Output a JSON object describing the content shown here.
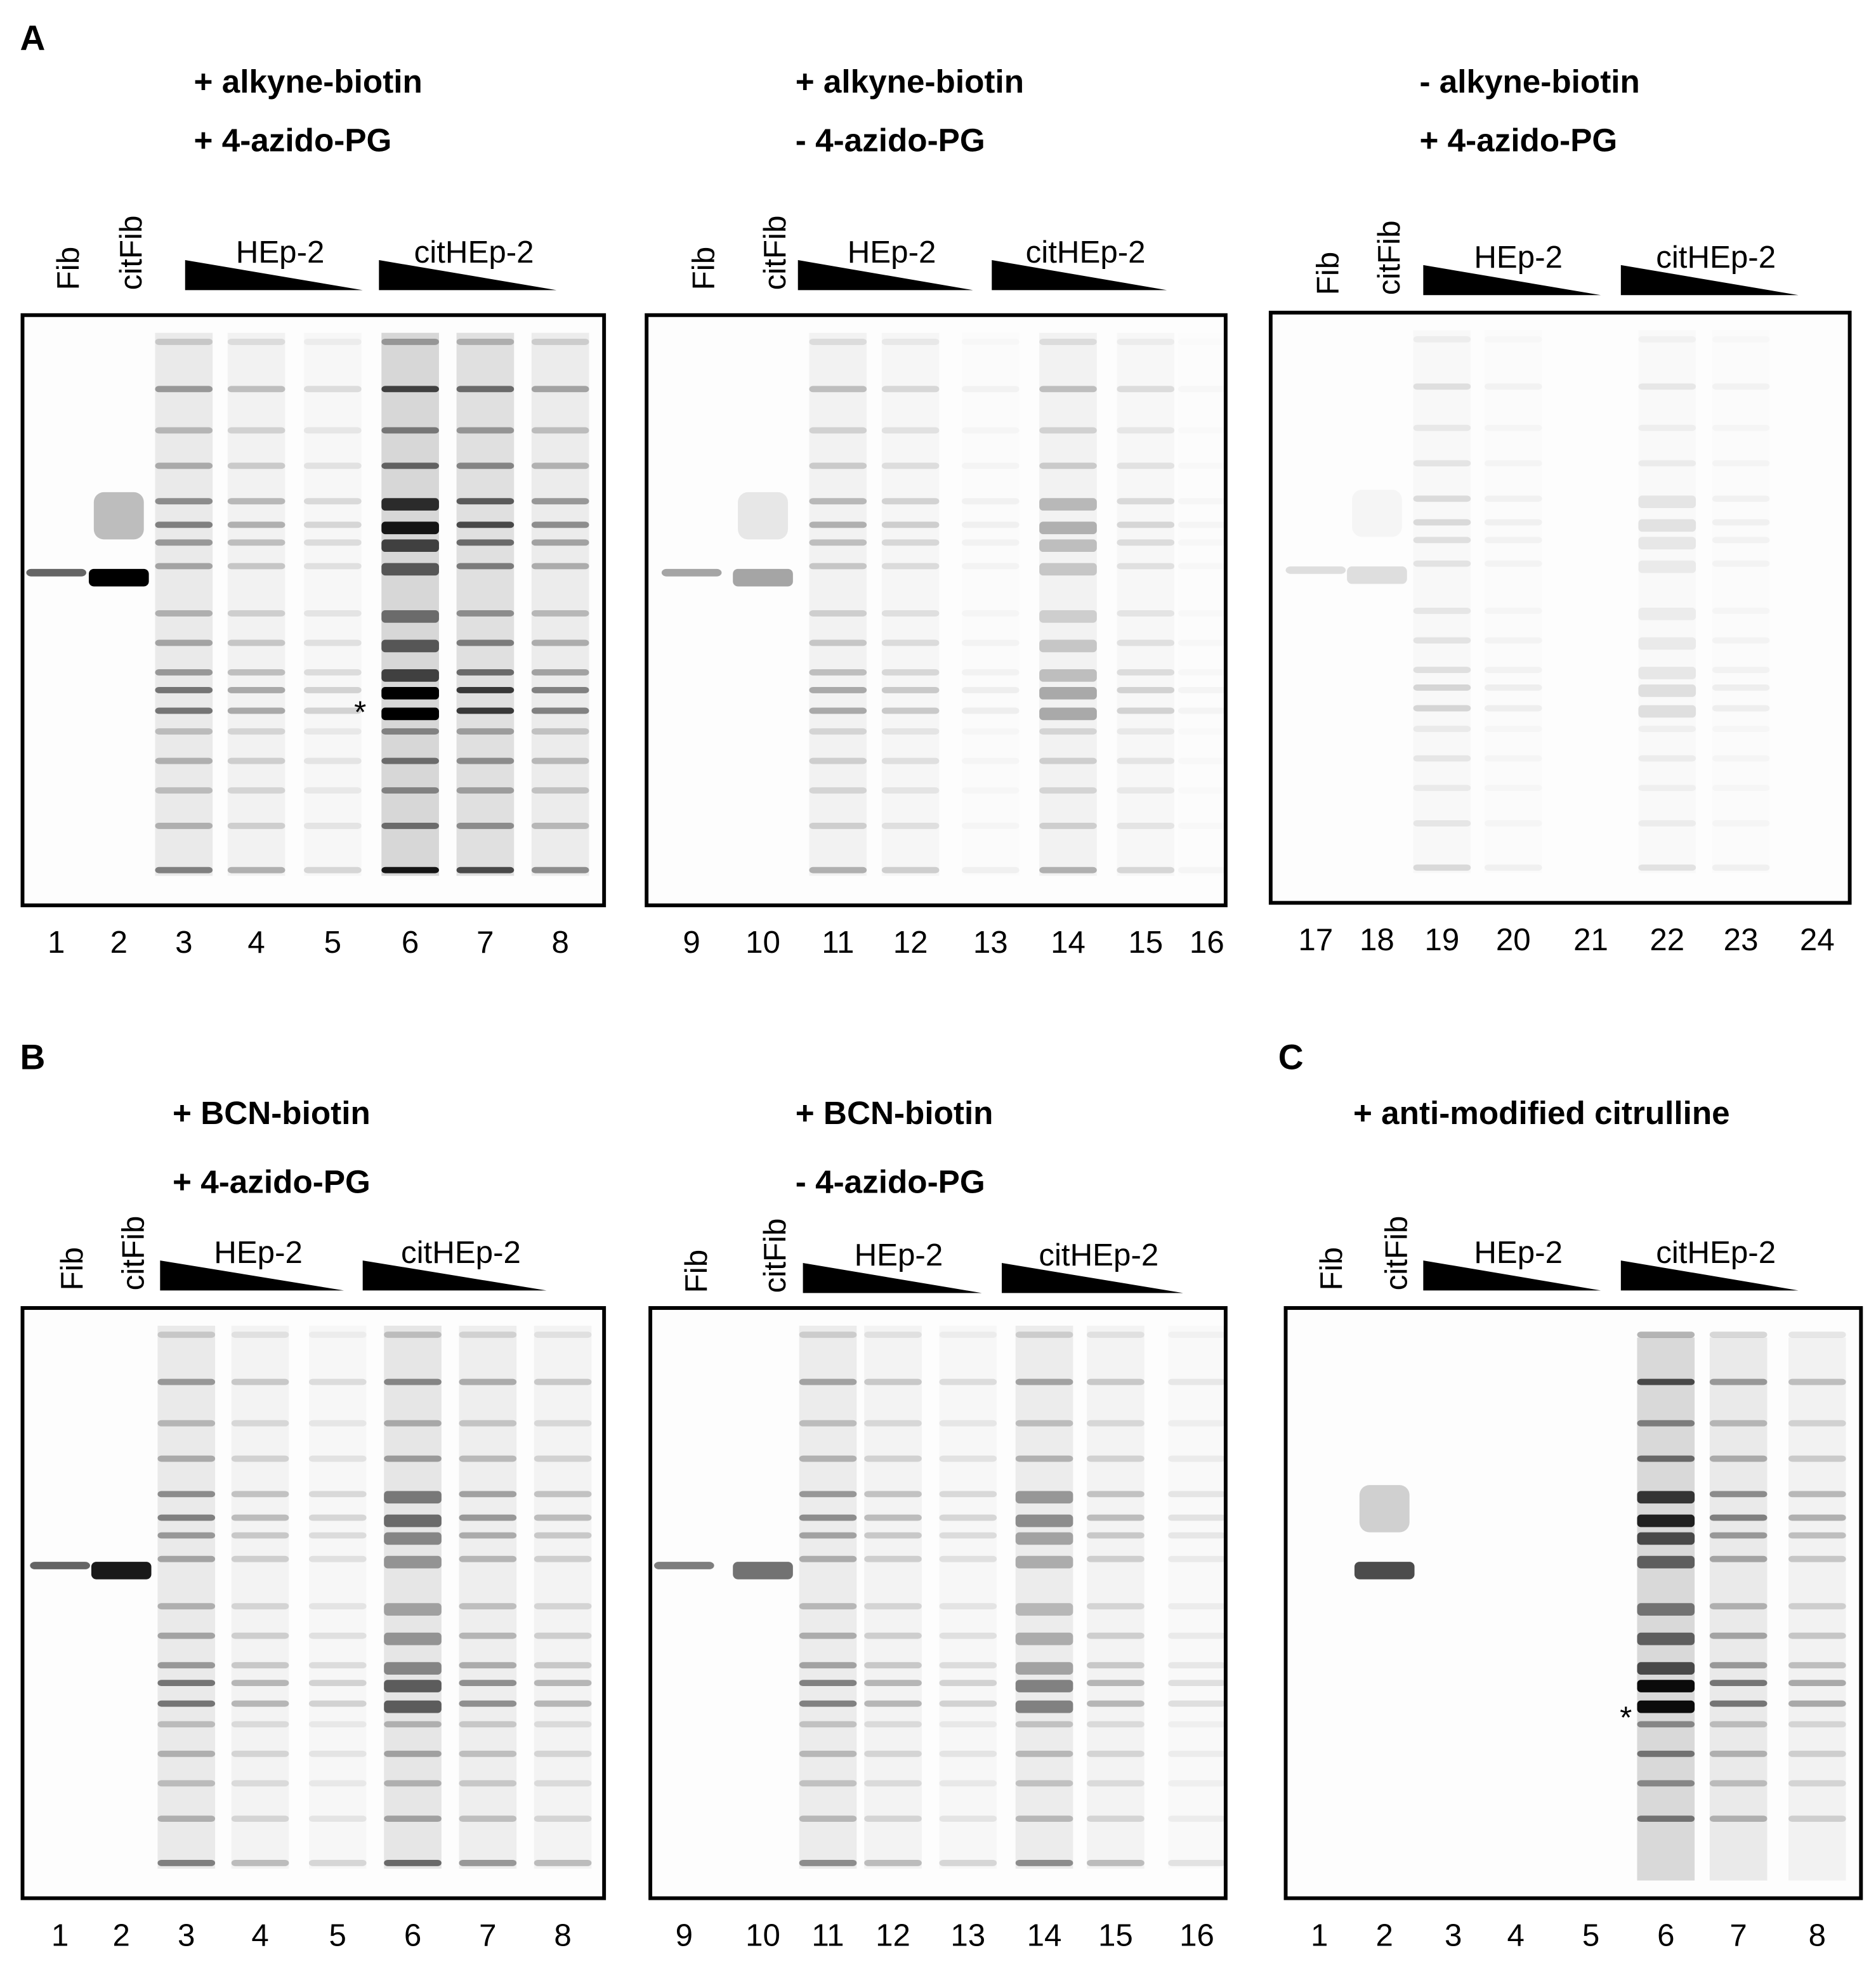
{
  "panels": [
    {
      "letter": "A",
      "gels": [
        {
          "conditions": [
            "+ alkyne-biotin",
            "+ 4-azido-PG"
          ],
          "lane_labels": [
            "Fib",
            "citFib",
            "HEp-2",
            "citHEp-2"
          ],
          "lane_numbers": [
            "1",
            "2",
            "3",
            "4",
            "5",
            "6",
            "7",
            "8"
          ],
          "marker": "*"
        },
        {
          "conditions": [
            "+ alkyne-biotin",
            "- 4-azido-PG"
          ],
          "lane_labels": [
            "Fib",
            "citFib",
            "HEp-2",
            "citHEp-2"
          ],
          "lane_numbers": [
            "9",
            "10",
            "11",
            "12",
            "13",
            "14",
            "15",
            "16"
          ]
        },
        {
          "conditions": [
            "- alkyne-biotin",
            "+ 4-azido-PG"
          ],
          "lane_labels": [
            "Fib",
            "citFib",
            "HEp-2",
            "citHEp-2"
          ],
          "lane_numbers": [
            "17",
            "18",
            "19",
            "20",
            "21",
            "22",
            "23",
            "24"
          ]
        }
      ]
    },
    {
      "letter": "B",
      "gels": [
        {
          "conditions": [
            "+ BCN-biotin",
            "+ 4-azido-PG"
          ],
          "lane_labels": [
            "Fib",
            "citFib",
            "HEp-2",
            "citHEp-2"
          ],
          "lane_numbers": [
            "1",
            "2",
            "3",
            "4",
            "5",
            "6",
            "7",
            "8"
          ]
        },
        {
          "conditions": [
            "+ BCN-biotin",
            "- 4-azido-PG"
          ],
          "lane_labels": [
            "Fib",
            "citFib",
            "HEp-2",
            "citHEp-2"
          ],
          "lane_numbers": [
            "9",
            "10",
            "11",
            "12",
            "13",
            "14",
            "15",
            "16"
          ]
        }
      ]
    },
    {
      "letter": "C",
      "gels": [
        {
          "conditions": [
            "+ anti-modified citrulline"
          ],
          "lane_labels": [
            "Fib",
            "citFib",
            "HEp-2",
            "citHEp-2"
          ],
          "lane_numbers": [
            "1",
            "2",
            "3",
            "4",
            "5",
            "6",
            "7",
            "8"
          ],
          "marker": "*"
        }
      ]
    }
  ]
}
